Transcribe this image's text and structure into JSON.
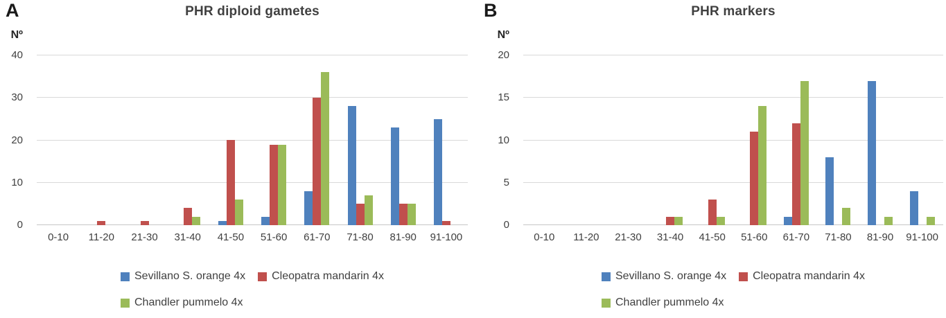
{
  "colors": {
    "series_blue": "#4F81BD",
    "series_red": "#C0504D",
    "series_green": "#9BBB59",
    "gridline": "#D9D9D9",
    "axis_line": "#C6C6C6",
    "text": "#404040"
  },
  "chart_data": [
    {
      "type": "bar",
      "panel_label": "A",
      "title": "PHR diploid gametes",
      "ylabel": "Nº",
      "xlabel": "",
      "ylim": [
        0,
        40
      ],
      "yticks": [
        0,
        10,
        20,
        30,
        40
      ],
      "grid": true,
      "legend_position": "bottom",
      "categories": [
        "0-10",
        "11-20",
        "21-30",
        "31-40",
        "41-50",
        "51-60",
        "61-70",
        "71-80",
        "81-90",
        "91-100"
      ],
      "series": [
        {
          "name": "Sevillano S. orange 4x",
          "color": "#4F81BD",
          "values": [
            0,
            0,
            0,
            0,
            1,
            2,
            8,
            28,
            23,
            25
          ]
        },
        {
          "name": "Cleopatra mandarin 4x",
          "color": "#C0504D",
          "values": [
            0,
            1,
            1,
            4,
            20,
            19,
            30,
            5,
            5,
            1
          ]
        },
        {
          "name": "Chandler pummelo 4x",
          "color": "#9BBB59",
          "values": [
            0,
            0,
            0,
            2,
            6,
            19,
            36,
            7,
            5,
            0
          ]
        }
      ]
    },
    {
      "type": "bar",
      "panel_label": "B",
      "title": "PHR markers",
      "ylabel": "Nº",
      "xlabel": "",
      "ylim": [
        0,
        20
      ],
      "yticks": [
        0,
        5,
        10,
        15,
        20
      ],
      "grid": true,
      "legend_position": "bottom",
      "categories": [
        "0-10",
        "11-20",
        "21-30",
        "31-40",
        "41-50",
        "51-60",
        "61-70",
        "71-80",
        "81-90",
        "91-100"
      ],
      "series": [
        {
          "name": "Sevillano S. orange 4x",
          "color": "#4F81BD",
          "values": [
            0,
            0,
            0,
            0,
            0,
            0,
            1,
            8,
            17,
            4
          ]
        },
        {
          "name": "Cleopatra mandarin 4x",
          "color": "#C0504D",
          "values": [
            0,
            0,
            0,
            1,
            3,
            11,
            12,
            0,
            0,
            0
          ]
        },
        {
          "name": "Chandler pummelo 4x",
          "color": "#9BBB59",
          "values": [
            0,
            0,
            0,
            1,
            1,
            14,
            17,
            2,
            1,
            1
          ]
        }
      ]
    }
  ]
}
